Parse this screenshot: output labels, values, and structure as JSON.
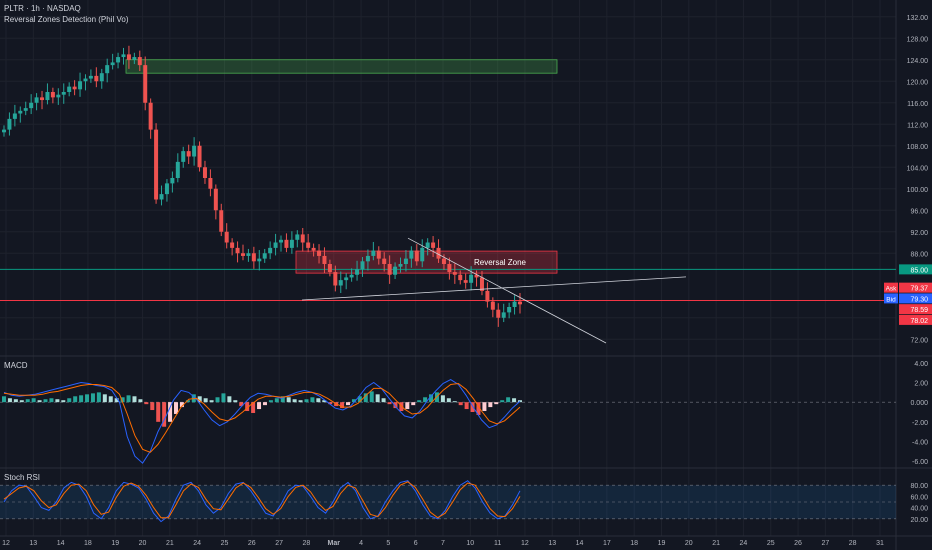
{
  "header": {
    "symbol_line": "PLTR · 1h · NASDAQ",
    "indicator_line": "Reversal Zones Detection (Phil Vo)"
  },
  "panes": {
    "macd_label": "MACD",
    "stoch_label": "Stoch RSI"
  },
  "colors": {
    "background": "#131722",
    "grid": "#1e222d",
    "up": "#26a69a",
    "down": "#ef5350",
    "macd_line": "#2962ff",
    "signal_line": "#ff6d00",
    "stoch_k": "#2962ff",
    "stoch_d": "#ff6d00"
  },
  "chart_data": {
    "type": "candlestick",
    "price_axis": {
      "ticks": [
        "132.00",
        "128.00",
        "124.00",
        "120.00",
        "116.00",
        "112.00",
        "108.00",
        "104.00",
        "100.00",
        "96.00",
        "92.00",
        "88.00",
        "76.00",
        "72.00"
      ],
      "range": [
        70,
        134
      ]
    },
    "price_labels": [
      {
        "label": "",
        "value": "85.00",
        "price": 85.0,
        "color": "#089981"
      },
      {
        "label": "Ask",
        "value": "79.37",
        "price": 81.6,
        "color": "#f23645"
      },
      {
        "label": "Bid",
        "value": "79.30",
        "price": 79.6,
        "color": "#2962ff"
      },
      {
        "label": "",
        "value": "78.59",
        "price": 77.6,
        "color": "#f23645"
      },
      {
        "label": "",
        "value": "78.02",
        "price": 75.6,
        "color": "#f23645"
      }
    ],
    "x_axis": {
      "ticks": [
        "12",
        "13",
        "14",
        "18",
        "19",
        "20",
        "21",
        "24",
        "25",
        "26",
        "27",
        "28",
        "Mar",
        "4",
        "5",
        "6",
        "7",
        "10",
        "11",
        "12",
        "13",
        "14",
        "17",
        "18",
        "19",
        "20",
        "21",
        "24",
        "25",
        "26",
        "27",
        "28",
        "31"
      ]
    },
    "support_line": 85.0,
    "resistance_line": 79.2,
    "zones": [
      {
        "name": "upper-zone",
        "top": 124.0,
        "bottom": 121.5
      },
      {
        "name": "reversal-zone",
        "top": 88.4,
        "bottom": 84.3,
        "label": "Reversal Zone"
      }
    ],
    "candles_close": [
      111,
      113,
      114,
      114.5,
      115,
      116,
      117,
      116.5,
      118,
      117,
      117.5,
      118,
      119,
      118.5,
      120,
      120.5,
      121,
      120,
      121.5,
      123,
      123.5,
      124.5,
      125,
      124,
      124.5,
      123,
      116,
      111,
      98,
      99,
      101,
      102,
      105,
      107,
      106,
      108,
      104,
      102,
      100,
      96,
      92,
      90,
      89,
      88,
      87.5,
      88,
      86.5,
      87,
      88,
      89,
      90,
      90.5,
      89,
      90.5,
      91.5,
      90,
      89,
      88.5,
      87.5,
      86,
      84.5,
      82,
      83,
      83.5,
      84,
      85,
      86.5,
      87.5,
      88.5,
      87,
      86,
      84,
      85.5,
      86,
      87,
      88.5,
      86.5,
      89,
      90,
      89,
      87,
      86,
      84.5,
      84,
      83,
      82.5,
      84,
      83.5,
      81,
      79,
      77.5,
      76,
      77,
      78,
      79,
      78.5
    ],
    "macd_axis": {
      "ticks": [
        "4.00",
        "2.00",
        "0.000",
        "-2.00",
        "-4.00",
        "-6.00"
      ],
      "range": [
        -6.5,
        4.5
      ]
    },
    "macd_hist": [
      0.6,
      0.4,
      0.3,
      0.2,
      0.3,
      0.4,
      0.2,
      0.3,
      0.4,
      0.3,
      0.2,
      0.4,
      0.6,
      0.7,
      0.8,
      0.9,
      1.0,
      0.8,
      0.6,
      0.4,
      0.5,
      0.7,
      0.6,
      0.3,
      -0.2,
      -0.8,
      -2.0,
      -2.5,
      -2.0,
      -1.2,
      -0.5,
      0.2,
      0.8,
      0.6,
      0.4,
      0.2,
      0.5,
      0.9,
      0.6,
      0.2,
      -0.4,
      -0.9,
      -1.1,
      -0.7,
      -0.3,
      0.2,
      0.4,
      0.6,
      0.5,
      0.3,
      0.2,
      0.3,
      0.5,
      0.4,
      0.2,
      -0.2,
      -0.4,
      -0.6,
      -0.3,
      0.3,
      0.6,
      0.9,
      1.1,
      0.8,
      0.4,
      -0.2,
      -0.6,
      -0.9,
      -0.7,
      -0.3,
      0.2,
      0.5,
      0.8,
      1.0,
      0.7,
      0.4,
      0.1,
      -0.3,
      -0.7,
      -1.0,
      -1.3,
      -0.9,
      -0.5,
      -0.2,
      0.2,
      0.5,
      0.4,
      0.2
    ],
    "macd_line": [
      1.0,
      0.7,
      0.6,
      0.7,
      0.8,
      1.0,
      1.2,
      1.4,
      1.6,
      1.8,
      2.0,
      1.9,
      1.7,
      1.6,
      1.2,
      0.0,
      -3.5,
      -5.5,
      -6.2,
      -5.0,
      -3.0,
      -1.5,
      0.2,
      1.2,
      1.0,
      0.3,
      -0.8,
      -1.8,
      -2.4,
      -2.0,
      -1.2,
      -0.3,
      0.5,
      0.9,
      0.8,
      0.6,
      0.4,
      0.7,
      1.0,
      1.2,
      1.0,
      0.6,
      0.0,
      -0.6,
      -0.8,
      -0.4,
      0.5,
      1.5,
      2.0,
      1.4,
      0.4,
      -0.6,
      -1.4,
      -1.6,
      -0.9,
      0.2,
      1.1,
      1.9,
      2.3,
      1.8,
      0.7,
      -0.6,
      -1.8,
      -2.6,
      -2.3,
      -1.5,
      -0.6,
      0.1
    ],
    "signal_line": [
      0.9,
      0.8,
      0.7,
      0.7,
      0.7,
      0.8,
      1.0,
      1.1,
      1.3,
      1.5,
      1.7,
      1.8,
      1.8,
      1.7,
      1.5,
      0.8,
      -1.2,
      -3.4,
      -4.8,
      -5.1,
      -4.3,
      -3.1,
      -1.8,
      -0.5,
      0.3,
      0.4,
      -0.2,
      -1.0,
      -1.7,
      -1.9,
      -1.6,
      -1.0,
      -0.3,
      0.3,
      0.6,
      0.6,
      0.5,
      0.6,
      0.8,
      1.0,
      1.0,
      0.8,
      0.4,
      -0.1,
      -0.5,
      -0.5,
      -0.1,
      0.7,
      1.4,
      1.4,
      0.9,
      0.1,
      -0.7,
      -1.2,
      -1.1,
      -0.5,
      0.4,
      1.2,
      1.8,
      1.9,
      1.3,
      0.3,
      -0.9,
      -1.9,
      -2.2,
      -1.9,
      -1.2,
      -0.5
    ],
    "stoch_axis": {
      "ticks": [
        "80.00",
        "60.00",
        "40.00",
        "20.00"
      ],
      "range": [
        0,
        100
      ],
      "band": [
        20,
        80
      ]
    },
    "stoch_k": [
      50,
      70,
      80,
      78,
      60,
      40,
      35,
      50,
      75,
      85,
      80,
      60,
      30,
      20,
      40,
      70,
      85,
      82,
      75,
      55,
      30,
      15,
      25,
      55,
      80,
      85,
      70,
      45,
      30,
      40,
      65,
      82,
      85,
      70,
      50,
      30,
      25,
      45,
      70,
      80,
      78,
      60,
      40,
      30,
      50,
      75,
      85,
      70,
      40,
      20,
      25,
      50,
      70,
      85,
      88,
      70,
      45,
      25,
      20,
      35,
      60,
      80,
      88,
      75,
      50,
      30,
      20,
      25,
      45,
      70
    ],
    "stoch_d": [
      55,
      65,
      75,
      78,
      70,
      52,
      40,
      45,
      65,
      80,
      82,
      70,
      45,
      28,
      32,
      58,
      78,
      84,
      78,
      62,
      40,
      22,
      22,
      45,
      70,
      82,
      76,
      55,
      38,
      36,
      55,
      75,
      84,
      76,
      58,
      38,
      28,
      38,
      60,
      76,
      80,
      68,
      48,
      35,
      42,
      65,
      80,
      75,
      52,
      28,
      24,
      40,
      62,
      80,
      86,
      76,
      55,
      32,
      22,
      30,
      50,
      72,
      84,
      80,
      60,
      38,
      25,
      24,
      38,
      60
    ]
  }
}
